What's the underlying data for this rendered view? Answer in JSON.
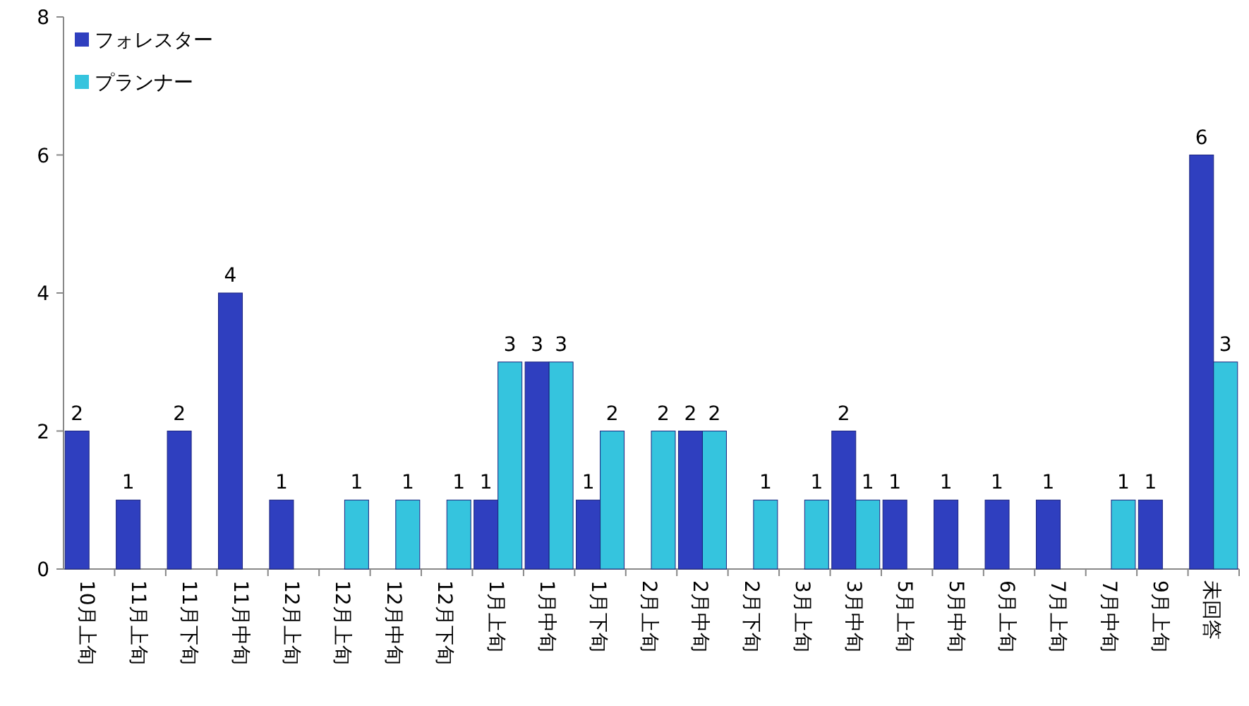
{
  "chart_data": {
    "type": "bar",
    "categories": [
      "10月上旬",
      "11月上旬",
      "11月下旬",
      "11月中旬",
      "12月上旬",
      "12月上旬",
      "12月中旬",
      "12月下旬",
      "1月上旬",
      "1月中旬",
      "1月下旬",
      "2月上旬",
      "2月中旬",
      "2月下旬",
      "3月上旬",
      "3月中旬",
      "5月上旬",
      "5月中旬",
      "6月上旬",
      "7月上旬",
      "7月中旬",
      "9月上旬",
      "未回答"
    ],
    "series": [
      {
        "name": "フォレスター",
        "color": "#2f3fbf",
        "values": [
          2,
          1,
          2,
          4,
          1,
          null,
          null,
          null,
          1,
          3,
          1,
          null,
          2,
          null,
          null,
          2,
          1,
          1,
          1,
          1,
          null,
          1,
          6
        ]
      },
      {
        "name": "プランナー",
        "color": "#35c4de",
        "values": [
          null,
          null,
          null,
          null,
          null,
          1,
          1,
          1,
          3,
          3,
          2,
          2,
          2,
          1,
          1,
          1,
          null,
          null,
          null,
          null,
          1,
          null,
          3
        ]
      }
    ],
    "ylim": [
      0,
      8
    ],
    "yticks": [
      0,
      2,
      4,
      6,
      8
    ],
    "grid": false,
    "legend": "top left",
    "data_labels": true
  }
}
